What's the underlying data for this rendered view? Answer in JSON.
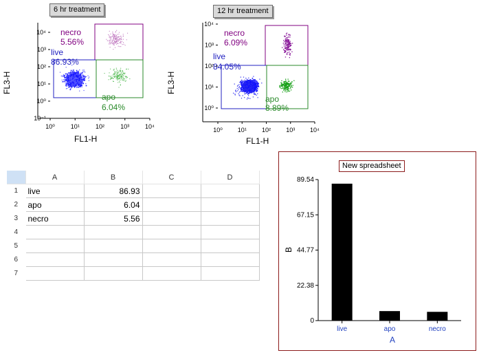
{
  "plots": [
    {
      "title": "6 hr treatment",
      "xlabel": "FL1-H",
      "ylabel": "FL3-H",
      "x_ticks": [
        "10⁰",
        "10¹",
        "10²",
        "10³",
        "10⁴"
      ],
      "y_ticks": [
        "10⁻¹",
        "10⁰",
        "10¹",
        "10²",
        "10³",
        "10⁴"
      ],
      "gates": [
        {
          "name": "necro",
          "percent": "5.56%",
          "color": "#800080"
        },
        {
          "name": "live",
          "percent": "86.93%",
          "color": "#2020c0"
        },
        {
          "name": "apo",
          "percent": "6.04%",
          "color": "#2a8a2a"
        }
      ]
    },
    {
      "title": "12 hr treatment",
      "xlabel": "FL1-H",
      "ylabel": "FL3-H",
      "x_ticks": [
        "10⁰",
        "10¹",
        "10²",
        "10³",
        "10⁴"
      ],
      "y_ticks": [
        "10⁰",
        "10¹",
        "10²",
        "10³",
        "10⁴"
      ],
      "gates": [
        {
          "name": "necro",
          "percent": "6.09%",
          "color": "#800080"
        },
        {
          "name": "live",
          "percent": "84.05%",
          "color": "#2020c0"
        },
        {
          "name": "apo",
          "percent": "8.89%",
          "color": "#2a8a2a"
        }
      ]
    }
  ],
  "spreadsheet": {
    "columns": [
      "A",
      "B",
      "C",
      "D"
    ],
    "rows": [
      {
        "num": "1",
        "a": "live",
        "b": "86.93"
      },
      {
        "num": "2",
        "a": "apo",
        "b": "6.04"
      },
      {
        "num": "3",
        "a": "necro",
        "b": "5.56"
      },
      {
        "num": "4",
        "a": "",
        "b": ""
      },
      {
        "num": "5",
        "a": "",
        "b": ""
      },
      {
        "num": "6",
        "a": "",
        "b": ""
      },
      {
        "num": "7",
        "a": "",
        "b": ""
      }
    ]
  },
  "chart_data": {
    "type": "bar",
    "title": "New spreadsheet",
    "categories": [
      "live",
      "apo",
      "necro"
    ],
    "values": [
      86.93,
      6.04,
      5.56
    ],
    "xlabel": "A",
    "ylabel": "B",
    "y_ticks": [
      "0",
      "22.38",
      "44.77",
      "67.15",
      "89.54"
    ],
    "ylim": [
      0,
      89.54
    ],
    "bar_color": "#000000"
  }
}
